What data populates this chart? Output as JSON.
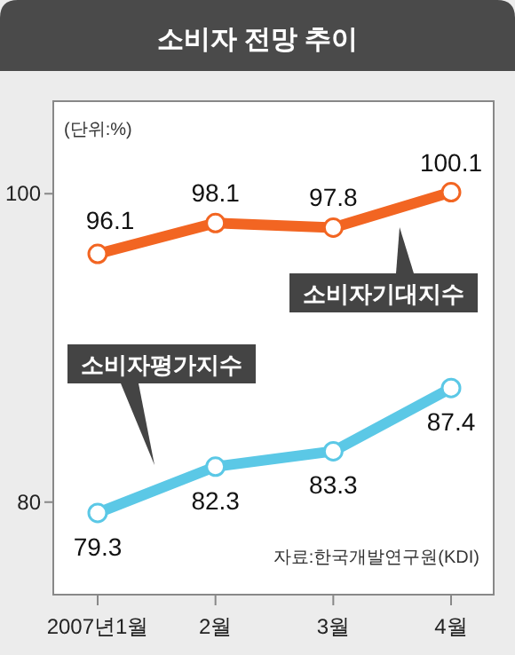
{
  "chart_data": {
    "type": "line",
    "title": "소비자 전망 추이",
    "ylabel": "(단위:%)",
    "categories": [
      "2007년1월",
      "2월",
      "3월",
      "4월"
    ],
    "series": [
      {
        "name": "소비자기대지수",
        "color": "#f26522",
        "values": [
          96.1,
          98.1,
          97.8,
          100.1
        ]
      },
      {
        "name": "소비자평가지수",
        "color": "#5bc8e6",
        "values": [
          79.3,
          82.3,
          83.3,
          87.4
        ]
      }
    ],
    "ylim": [
      74,
      106
    ],
    "yticks": [
      80,
      100
    ],
    "grid": false,
    "legend": false,
    "marker": "circle",
    "line_style": "solid",
    "data_labels": true,
    "annotations": [
      "자료:한국개발연구원(KDI)"
    ]
  }
}
